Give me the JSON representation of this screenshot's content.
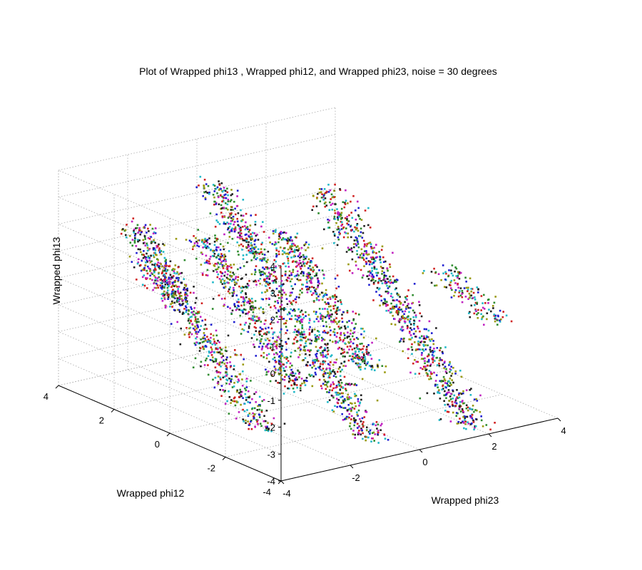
{
  "chart_data": {
    "type": "scatter",
    "projection": "3d",
    "title": "Plot of Wrapped phi13 , Wrapped phi12, and Wrapped phi23, noise = 30 degrees",
    "xlabel": "Wrapped phi23",
    "ylabel": "Wrapped phi12",
    "zlabel": "Wrapped phi13",
    "xlim": [
      -4,
      4
    ],
    "ylim": [
      -4,
      4
    ],
    "zlim": [
      -4,
      4
    ],
    "x_ticks": [
      "-4",
      "-2",
      "0",
      "2",
      "4"
    ],
    "y_ticks": [
      "-4",
      "-2",
      "0",
      "2",
      "4"
    ],
    "z_ticks": [
      "-4",
      "-3",
      "-2",
      "-1",
      "0",
      "1",
      "2",
      "3",
      "4"
    ],
    "grid": true,
    "point_colors": [
      "#1f1fd0",
      "#2e8b2e",
      "#d02020",
      "#20b8c8",
      "#c020c0",
      "#9a9a10",
      "#202020"
    ],
    "clusters": [
      {
        "z_min": -1.2,
        "z_max": 0.2,
        "center": {
          "x": -1.53,
          "y": 3.34
        },
        "slope": {
          "x": -0.46,
          "y": 0.27
        },
        "points": 150
      },
      {
        "z_min": -4.0,
        "z_max": 2.3,
        "center": {
          "x": -2.5,
          "y": 0.9
        },
        "slope": {
          "x": -0.14,
          "y": 0.55
        },
        "points": 650
      },
      {
        "z_min": -3.2,
        "z_max": 1.5,
        "center": {
          "x": -0.96,
          "y": 0.86
        },
        "slope": {
          "x": -0.14,
          "y": 0.55
        },
        "points": 550
      },
      {
        "z_min": -4.0,
        "z_max": 3.9,
        "center": {
          "x": -1.0,
          "y": -0.62
        },
        "slope": {
          "x": -0.14,
          "y": 0.55
        },
        "points": 900
      },
      {
        "z_min": -2.3,
        "z_max": 1.9,
        "center": {
          "x": 0.23,
          "y": -0.25
        },
        "slope": {
          "x": -0.14,
          "y": 0.55
        },
        "points": 550
      },
      {
        "z_min": -3.5,
        "z_max": 3.9,
        "center": {
          "x": 0.84,
          "y": -2.25
        },
        "slope": {
          "x": -0.14,
          "y": 0.55
        },
        "points": 850
      },
      {
        "z_min": -1.1,
        "z_max": 1.0,
        "center": {
          "x": 3.07,
          "y": -2.0
        },
        "slope": {
          "x": -0.46,
          "y": 0.27
        },
        "points": 150
      }
    ]
  }
}
